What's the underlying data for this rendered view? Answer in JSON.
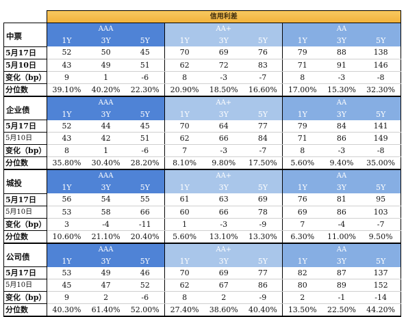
{
  "chart_data": {
    "type": "table",
    "title": "信用利差",
    "ratings": [
      "AAA",
      "AA+",
      "AA"
    ],
    "tenors": [
      "1Y",
      "3Y",
      "5Y"
    ],
    "sections": [
      {
        "name": "中票",
        "rows": [
          {
            "label": "5月17日",
            "values": [
              52,
              50,
              45,
              70,
              69,
              76,
              79,
              88,
              138
            ]
          },
          {
            "label": "5月10日",
            "values": [
              43,
              49,
              51,
              62,
              72,
              83,
              71,
              91,
              146
            ]
          },
          {
            "label": "变化（bp）",
            "values": [
              9,
              1,
              -6,
              8,
              -3,
              -7,
              8,
              -3,
              -8
            ]
          },
          {
            "label": "分位数",
            "values": [
              "39.10%",
              "40.20%",
              "22.30%",
              "20.90%",
              "18.50%",
              "16.60%",
              "17.00%",
              "15.30%",
              "32.30%"
            ]
          }
        ]
      },
      {
        "name": "企业债",
        "rows": [
          {
            "label": "5月17日",
            "values": [
              52,
              44,
              45,
              70,
              64,
              77,
              79,
              84,
              141
            ]
          },
          {
            "label": "5月10日",
            "values": [
              43,
              42,
              51,
              62,
              66,
              84,
              71,
              86,
              149
            ]
          },
          {
            "label": "变化（bp）",
            "values": [
              8,
              1,
              -6,
              7,
              -3,
              -7,
              8,
              -3,
              -8
            ]
          },
          {
            "label": "分位数",
            "values": [
              "35.80%",
              "30.40%",
              "28.20%",
              "8.10%",
              "9.80%",
              "17.50%",
              "5.60%",
              "9.40%",
              "35.00%"
            ]
          }
        ]
      },
      {
        "name": "城投",
        "rows": [
          {
            "label": "5月17日",
            "values": [
              56,
              54,
              55,
              61,
              63,
              69,
              76,
              81,
              95
            ]
          },
          {
            "label": "5月10日",
            "values": [
              53,
              58,
              66,
              60,
              66,
              78,
              69,
              86,
              103
            ]
          },
          {
            "label": "变化（bp）",
            "values": [
              3,
              -4,
              -11,
              1,
              -3,
              -9,
              7,
              -4,
              -7
            ]
          },
          {
            "label": "分位数",
            "values": [
              "10.60%",
              "21.10%",
              "20.40%",
              "5.60%",
              "13.10%",
              "13.30%",
              "6.30%",
              "11.00%",
              "9.50%"
            ]
          }
        ]
      },
      {
        "name": "公司债",
        "rows": [
          {
            "label": "5月17日",
            "values": [
              53,
              49,
              46,
              70,
              69,
              77,
              82,
              87,
              137
            ]
          },
          {
            "label": "5月10日",
            "values": [
              45,
              47,
              52,
              62,
              67,
              86,
              80,
              89,
              152
            ]
          },
          {
            "label": "变化（bp）",
            "values": [
              9,
              2,
              -6,
              8,
              2,
              -9,
              2,
              -1,
              -14
            ]
          },
          {
            "label": "分位数",
            "values": [
              "40.30%",
              "61.40%",
              "52.00%",
              "27.40%",
              "38.60%",
              "40.40%",
              "13.50%",
              "22.50%",
              "44.20%"
            ]
          }
        ]
      }
    ]
  },
  "colors": {
    "title_bg": "#f3b23a",
    "aaa_header": "#4f83d6",
    "aa_plus_header": "#a9c6ea",
    "aa_header": "#86aee3",
    "grid_line": "#000000"
  }
}
